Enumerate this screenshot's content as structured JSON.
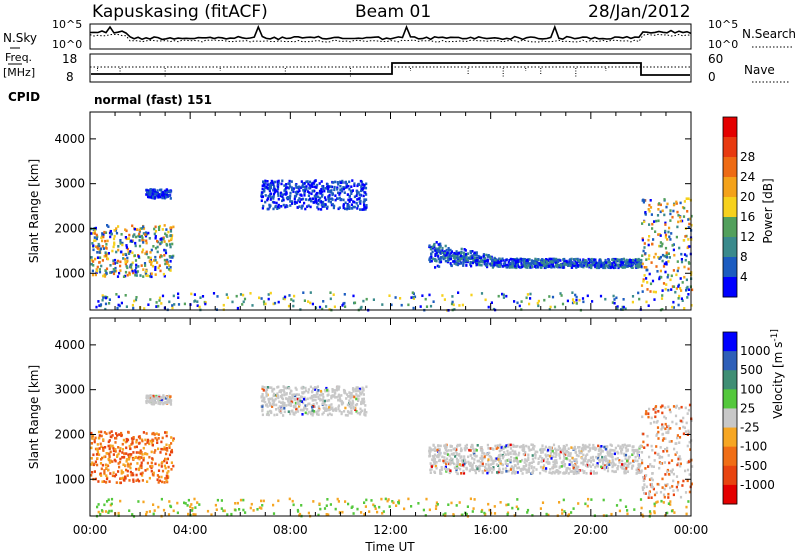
{
  "header": {
    "station": "Kapuskasing (fitACF)",
    "beam": "Beam 01",
    "date": "28/Jan/2012"
  },
  "top_panel": {
    "left_label": "N.Sky",
    "left_ticks": [
      "10^5",
      "10^0"
    ],
    "right_ticks": [
      "10^5",
      "10^0"
    ],
    "right_label": "N.Search"
  },
  "freq_panel": {
    "label_1": "Freq.",
    "label_2": "[MHz]",
    "left_ticks": [
      "18",
      "8"
    ],
    "right_ticks": [
      "60",
      "0"
    ],
    "right_label": "Nave",
    "cpid_label": "CPID",
    "cpid_value": "normal (fast) 151"
  },
  "colors": {
    "power": [
      "#0000ff",
      "#1c5cc0",
      "#3a8a8c",
      "#52a05c",
      "#f6d11d",
      "#f4a21a",
      "#ee6b14",
      "#e83a10",
      "#e40000"
    ],
    "velocity": [
      "#0000ff",
      "#2e5fb8",
      "#3f8e74",
      "#54c83c",
      "#c8c8c8",
      "#f6a623",
      "#f06e16",
      "#e84410",
      "#e40000"
    ]
  },
  "chart_data": [
    {
      "type": "heatmap",
      "name": "power",
      "ylabel": "Slant Range [km]",
      "xlabel": "",
      "x_ticks": [
        "00:00",
        "04:00",
        "08:00",
        "12:00",
        "16:00",
        "20:00",
        "00:00"
      ],
      "y_ticks": [
        1000,
        2000,
        3000,
        4000
      ],
      "ylim": [
        180,
        4600
      ],
      "colorbar_label": "Power [dB]",
      "colorbar_ticks": [
        "4",
        "8",
        "12",
        "16",
        "20",
        "24",
        "28"
      ],
      "regions": [
        {
          "t0": 0.0,
          "t1": 3.3,
          "r0": 950,
          "r1": 2100,
          "level": "high"
        },
        {
          "t0": 2.2,
          "t1": 3.2,
          "r0": 2700,
          "r1": 2900,
          "level": "low"
        },
        {
          "t0": 6.8,
          "t1": 11.0,
          "r0": 2450,
          "r1": 3100,
          "level": "low"
        },
        {
          "t0": 13.5,
          "t1": 22.0,
          "r0": 1150,
          "r1": 1800,
          "level": "mid"
        },
        {
          "t0": 22.0,
          "t1": 24.0,
          "r0": 600,
          "r1": 2700,
          "level": "high"
        },
        {
          "t0": 0.0,
          "t1": 24.0,
          "r0": 200,
          "r1": 600,
          "level": "sparse"
        }
      ]
    },
    {
      "type": "heatmap",
      "name": "velocity",
      "ylabel": "Slant Range [km]",
      "xlabel": "Time UT",
      "x_ticks": [
        "00:00",
        "04:00",
        "08:00",
        "12:00",
        "16:00",
        "20:00",
        "00:00"
      ],
      "y_ticks": [
        1000,
        2000,
        3000,
        4000
      ],
      "ylim": [
        180,
        4600
      ],
      "colorbar_label": "Velocity [m s^-1]",
      "colorbar_ticks": [
        "1000",
        "500",
        "100",
        "25",
        "-25",
        "-100",
        "-500",
        "-1000"
      ],
      "regions": [
        {
          "t0": 0.0,
          "t1": 3.3,
          "r0": 950,
          "r1": 2100,
          "level": "neg"
        },
        {
          "t0": 2.2,
          "t1": 3.2,
          "r0": 2700,
          "r1": 2900,
          "level": "zero"
        },
        {
          "t0": 6.8,
          "t1": 11.0,
          "r0": 2450,
          "r1": 3100,
          "level": "zero"
        },
        {
          "t0": 13.5,
          "t1": 22.0,
          "r0": 1150,
          "r1": 1800,
          "level": "zero"
        },
        {
          "t0": 22.0,
          "t1": 24.0,
          "r0": 600,
          "r1": 2700,
          "level": "negz"
        },
        {
          "t0": 0.0,
          "t1": 24.0,
          "r0": 200,
          "r1": 600,
          "level": "slow"
        }
      ]
    }
  ]
}
